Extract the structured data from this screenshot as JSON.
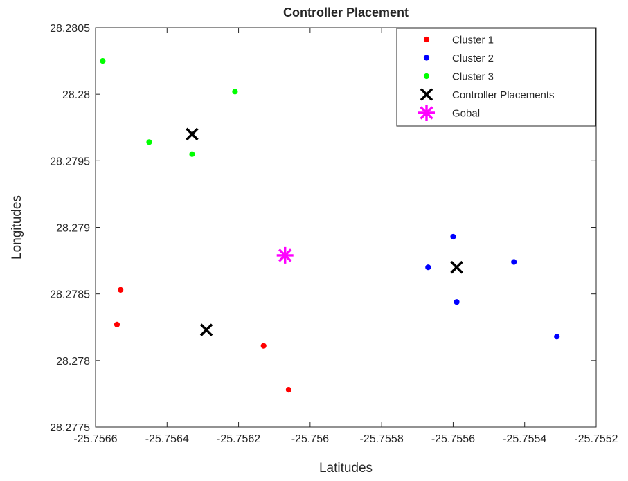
{
  "chart_data": {
    "type": "scatter",
    "title": "Controller Placement",
    "xlabel": "Latitudes",
    "ylabel": "Longitudes",
    "xlim": [
      -25.7566,
      -25.7552
    ],
    "ylim": [
      28.2775,
      28.2805
    ],
    "xticks": [
      -25.7566,
      -25.7564,
      -25.7562,
      -25.756,
      -25.7558,
      -25.7556,
      -25.7554,
      -25.7552
    ],
    "xtick_labels": [
      "-25.7566",
      "-25.7564",
      "-25.7562",
      "-25.756",
      "-25.7558",
      "-25.7556",
      "-25.7554",
      "-25.7552"
    ],
    "yticks": [
      28.2775,
      28.278,
      28.2785,
      28.279,
      28.2795,
      28.28,
      28.2805
    ],
    "ytick_labels": [
      "28.2775",
      "28.278",
      "28.2785",
      "28.279",
      "28.2795",
      "28.28",
      "28.2805"
    ],
    "grid": false,
    "legend_position": "top-right",
    "series": [
      {
        "name": "Cluster 1",
        "marker": "dot",
        "color": "#ff0000",
        "points": [
          [
            -25.75653,
            28.27853
          ],
          [
            -25.75654,
            28.27827
          ],
          [
            -25.75613,
            28.27811
          ],
          [
            -25.75606,
            28.27778
          ]
        ]
      },
      {
        "name": "Cluster 2",
        "marker": "dot",
        "color": "#0000ff",
        "points": [
          [
            -25.75567,
            28.2787
          ],
          [
            -25.7556,
            28.27893
          ],
          [
            -25.75559,
            28.27844
          ],
          [
            -25.75543,
            28.27874
          ],
          [
            -25.75531,
            28.27818
          ]
        ]
      },
      {
        "name": "Cluster 3",
        "marker": "dot",
        "color": "#00ff00",
        "points": [
          [
            -25.75658,
            28.28025
          ],
          [
            -25.75645,
            28.27964
          ],
          [
            -25.75633,
            28.27955
          ],
          [
            -25.75621,
            28.28002
          ]
        ]
      },
      {
        "name": "Controller Placements",
        "marker": "x",
        "color": "#000000",
        "points": [
          [
            -25.75633,
            28.2797
          ],
          [
            -25.75629,
            28.27823
          ],
          [
            -25.75559,
            28.2787
          ]
        ]
      },
      {
        "name": "Gobal",
        "marker": "asterisk",
        "color": "#ff00ff",
        "points": [
          [
            -25.75607,
            28.27879
          ]
        ]
      }
    ]
  }
}
